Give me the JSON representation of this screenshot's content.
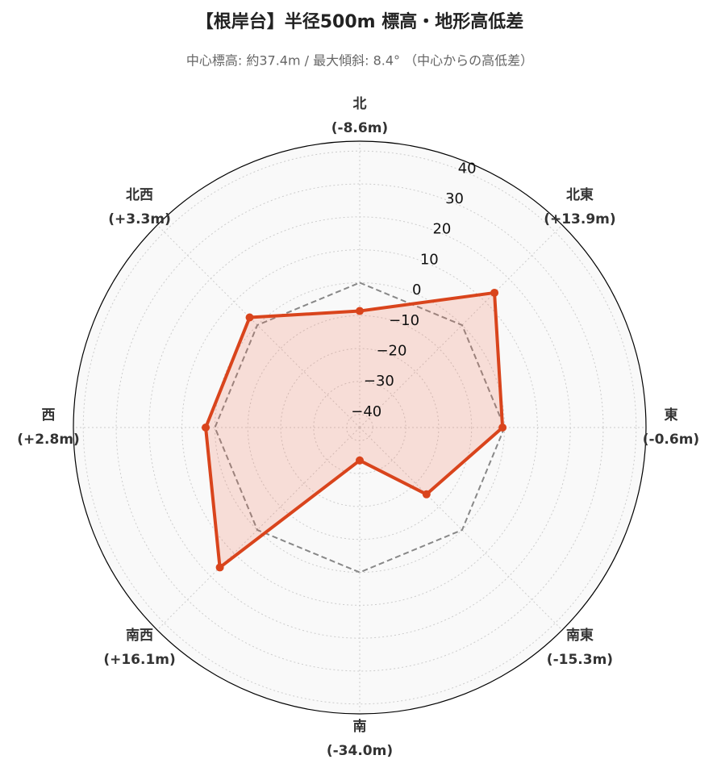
{
  "chart_data": {
    "type": "radar",
    "title": "【根岸台】半径500m 標高・地形高低差",
    "subtitle": "中心標高: 約37.4m / 最大傾斜: 8.4° （中心からの高低差）",
    "categories": [
      "北",
      "北東",
      "東",
      "南東",
      "南",
      "南西",
      "西",
      "北西"
    ],
    "series": [
      {
        "color": "#888888",
        "dashed": true,
        "values": [
          0,
          0,
          0,
          0,
          0,
          0,
          0,
          0
        ]
      },
      {
        "color": "#d9441c",
        "fill": "rgba(240,110,80,0.2)",
        "values": [
          -8.6,
          13.9,
          -0.6,
          -15.3,
          -34.0,
          16.1,
          2.8,
          3.3
        ],
        "value_labels": [
          "(-8.6m)",
          "(+13.9m)",
          "(-0.6m)",
          "(-15.3m)",
          "(-34.0m)",
          "(+16.1m)",
          "(+2.8m)",
          "(+3.3m)"
        ]
      }
    ],
    "ylim": [
      -44,
      43
    ],
    "yticks": [
      {
        "value": -40,
        "label": "−40"
      },
      {
        "value": -30,
        "label": "−30"
      },
      {
        "value": -20,
        "label": "−20"
      },
      {
        "value": -10,
        "label": "−10"
      },
      0,
      10,
      20,
      30,
      40
    ],
    "grid": true
  }
}
